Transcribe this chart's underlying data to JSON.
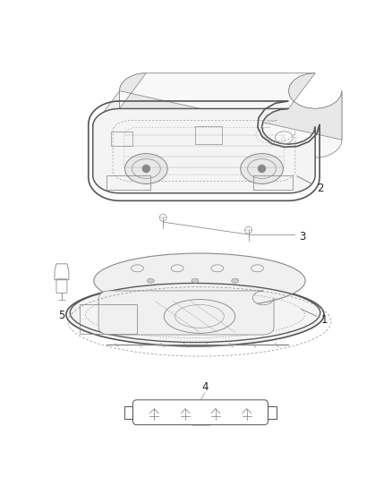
{
  "bg": "#ffffff",
  "lc": "#888888",
  "lc_dark": "#555555",
  "tc": "#222222",
  "lw": 0.8,
  "figsize": [
    4.38,
    5.33
  ],
  "dpi": 100,
  "label_fontsize": 8.5
}
